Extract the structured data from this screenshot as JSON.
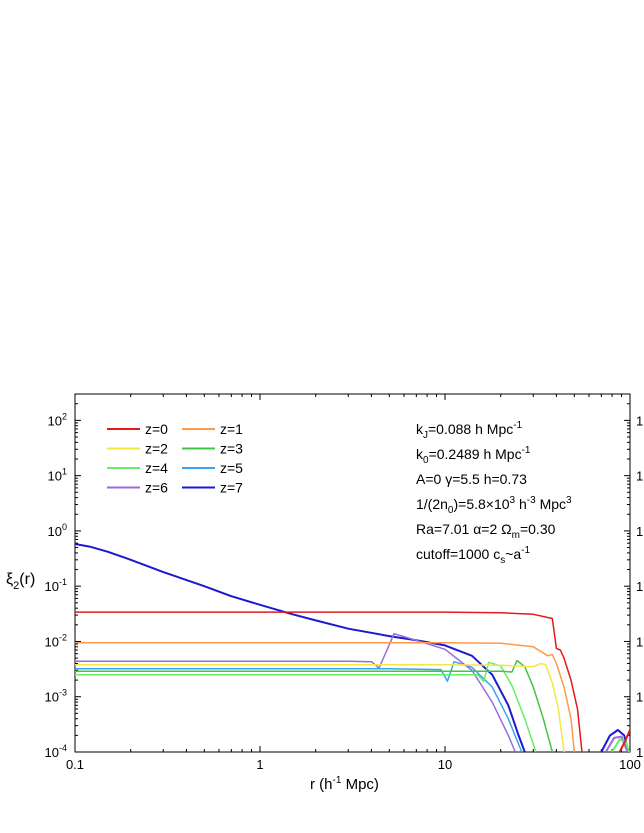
{
  "chart_data": {
    "type": "line",
    "xlabel": "r (h-1 Mpc)",
    "xlabel_parts": {
      "a": "r (h",
      "sup": "-1",
      "b": " Mpc)"
    },
    "ylabel": "ξ2(r)",
    "ylabel_parts": {
      "main": "ξ",
      "sub": "2",
      "tail": "(r)"
    },
    "x_scale": "log",
    "y_scale": "log",
    "xlim": [
      0.1,
      100
    ],
    "ylim": [
      0.0001,
      300
    ],
    "x_ticks": [
      {
        "value": 0.1,
        "label": "0.1"
      },
      {
        "value": 1,
        "label": "1"
      },
      {
        "value": 10,
        "label": "10"
      },
      {
        "value": 100,
        "label": "100"
      }
    ],
    "y_ticks": [
      {
        "value": 0.0001,
        "base": "10",
        "exp": "-4"
      },
      {
        "value": 0.001,
        "base": "10",
        "exp": "-3"
      },
      {
        "value": 0.01,
        "base": "10",
        "exp": "-2"
      },
      {
        "value": 0.1,
        "base": "10",
        "exp": "-1"
      },
      {
        "value": 1,
        "base": "10",
        "exp": "0"
      },
      {
        "value": 10,
        "base": "10",
        "exp": "1"
      },
      {
        "value": 100,
        "base": "10",
        "exp": "2"
      }
    ],
    "right_tick_label": "1",
    "grid": false,
    "legend_position": "top-left",
    "series": [
      {
        "name": "z=0",
        "color": "#e41a1c",
        "points": [
          [
            0.1,
            0.034
          ],
          [
            1,
            0.034
          ],
          [
            5,
            0.034
          ],
          [
            10,
            0.034
          ],
          [
            20,
            0.033
          ],
          [
            30,
            0.031
          ],
          [
            38,
            0.026
          ],
          [
            40,
            0.0075
          ],
          [
            42,
            0.007
          ],
          [
            44,
            0.005
          ],
          [
            48,
            0.002
          ],
          [
            52,
            0.0006
          ],
          [
            55,
            0.0001
          ]
        ]
      },
      {
        "name": "z=1",
        "color": "#ff9a4d",
        "points": [
          [
            0.1,
            0.0095
          ],
          [
            1,
            0.0095
          ],
          [
            5,
            0.0095
          ],
          [
            10,
            0.0095
          ],
          [
            20,
            0.0093
          ],
          [
            30,
            0.008
          ],
          [
            36,
            0.0055
          ],
          [
            38,
            0.0058
          ],
          [
            40,
            0.004
          ],
          [
            44,
            0.0015
          ],
          [
            48,
            0.0004
          ],
          [
            50,
            0.0001
          ]
        ]
      },
      {
        "name": "z=2",
        "color": "#f5e642",
        "points": [
          [
            0.1,
            0.0038
          ],
          [
            1,
            0.0038
          ],
          [
            10,
            0.0038
          ],
          [
            20,
            0.0037
          ],
          [
            30,
            0.0035
          ],
          [
            33,
            0.004
          ],
          [
            35,
            0.0038
          ],
          [
            38,
            0.0018
          ],
          [
            41,
            0.0006
          ],
          [
            44,
            0.0001
          ]
        ]
      },
      {
        "name": "z=3",
        "color": "#44c444",
        "points": [
          [
            0.1,
            0.0029
          ],
          [
            1,
            0.0029
          ],
          [
            10,
            0.0029
          ],
          [
            20,
            0.0029
          ],
          [
            23,
            0.0028
          ],
          [
            24.5,
            0.0045
          ],
          [
            27,
            0.0035
          ],
          [
            30,
            0.0015
          ],
          [
            34,
            0.0004
          ],
          [
            38,
            0.0001
          ]
        ]
      },
      {
        "name": "z=4",
        "color": "#66ee66",
        "points": [
          [
            0.1,
            0.0025
          ],
          [
            1,
            0.0025
          ],
          [
            10,
            0.0025
          ],
          [
            15,
            0.0025
          ],
          [
            16.2,
            0.0019
          ],
          [
            17.2,
            0.0042
          ],
          [
            20,
            0.0036
          ],
          [
            23,
            0.0016
          ],
          [
            27,
            0.0004
          ],
          [
            31,
            0.0001
          ]
        ]
      },
      {
        "name": "z=5",
        "color": "#3aa3f0",
        "points": [
          [
            0.1,
            0.0032
          ],
          [
            1,
            0.0032
          ],
          [
            5,
            0.0032
          ],
          [
            9.5,
            0.0031
          ],
          [
            10.3,
            0.0019
          ],
          [
            11.2,
            0.0043
          ],
          [
            14,
            0.0034
          ],
          [
            18,
            0.0015
          ],
          [
            22,
            0.0004
          ],
          [
            26,
            0.0001
          ]
        ]
      },
      {
        "name": "z=6",
        "color": "#9a6bde",
        "points": [
          [
            0.1,
            0.0044
          ],
          [
            1,
            0.0044
          ],
          [
            3,
            0.0044
          ],
          [
            4,
            0.0043
          ],
          [
            4.4,
            0.0033
          ],
          [
            4.9,
            0.0075
          ],
          [
            5.3,
            0.0138
          ],
          [
            7,
            0.0105
          ],
          [
            10,
            0.0072
          ],
          [
            14,
            0.003
          ],
          [
            18,
            0.0008
          ],
          [
            22,
            0.0002
          ],
          [
            24,
            0.0001
          ]
        ]
      },
      {
        "name": "z=7",
        "color": "#1a1ad0",
        "points": [
          [
            0.1,
            0.58
          ],
          [
            0.12,
            0.52
          ],
          [
            0.15,
            0.42
          ],
          [
            0.2,
            0.3
          ],
          [
            0.3,
            0.18
          ],
          [
            0.5,
            0.1
          ],
          [
            0.7,
            0.066
          ],
          [
            1,
            0.046
          ],
          [
            1.5,
            0.031
          ],
          [
            2,
            0.024
          ],
          [
            3,
            0.017
          ],
          [
            5,
            0.0125
          ],
          [
            7,
            0.0105
          ],
          [
            10,
            0.0085
          ],
          [
            14,
            0.0055
          ],
          [
            18,
            0.0025
          ],
          [
            22,
            0.0007
          ],
          [
            25,
            0.0002
          ],
          [
            27,
            0.0001
          ]
        ]
      }
    ],
    "right_bumps": [
      {
        "series": "z=7",
        "color": "#1a1ad0",
        "points": [
          [
            70,
            0.0001
          ],
          [
            78,
            0.0002
          ],
          [
            86,
            0.00025
          ],
          [
            93,
            0.0002
          ],
          [
            98,
            0.0001
          ]
        ]
      },
      {
        "series": "z=6",
        "color": "#9a6bde",
        "points": [
          [
            74,
            0.0001
          ],
          [
            82,
            0.00018
          ],
          [
            90,
            0.00019
          ],
          [
            97,
            0.0001
          ]
        ]
      },
      {
        "series": "z=4",
        "color": "#66ee66",
        "points": [
          [
            80,
            0.0001
          ],
          [
            88,
            0.00017
          ],
          [
            95,
            0.00015
          ],
          [
            99,
            0.0001
          ]
        ]
      },
      {
        "series": "z=0",
        "color": "#e41a1c",
        "points": [
          [
            88,
            0.0001
          ],
          [
            95,
            0.00017
          ],
          [
            100,
            0.00025
          ]
        ]
      }
    ],
    "annotations": [
      {
        "parts": [
          {
            "t": "k"
          },
          {
            "t": "J",
            "sub": true
          },
          {
            "t": "=0.088 h Mpc"
          },
          {
            "t": "-1",
            "sup": true
          }
        ]
      },
      {
        "parts": [
          {
            "t": "k"
          },
          {
            "t": "0",
            "sub": true
          },
          {
            "t": "=0.2489 h Mpc"
          },
          {
            "t": "-1",
            "sup": true
          }
        ]
      },
      {
        "parts": [
          {
            "t": "A=0   γ=5.5  h=0.73"
          }
        ]
      },
      {
        "parts": [
          {
            "t": "1/(2n"
          },
          {
            "t": "0",
            "sub": true
          },
          {
            "t": ")=5.8×10"
          },
          {
            "t": "3",
            "sup": true
          },
          {
            "t": " h"
          },
          {
            "t": "-3",
            "sup": true
          },
          {
            "t": " Mpc"
          },
          {
            "t": "3",
            "sup": true
          }
        ]
      },
      {
        "parts": [
          {
            "t": "Ra=7.01   α=2   Ω"
          },
          {
            "t": "m",
            "sub": true
          },
          {
            "t": "=0.30"
          }
        ]
      },
      {
        "parts": [
          {
            "t": "cutoff=1000  c"
          },
          {
            "t": "s",
            "sub": true
          },
          {
            "t": "~a"
          },
          {
            "t": "-1",
            "sup": true
          }
        ]
      }
    ]
  }
}
